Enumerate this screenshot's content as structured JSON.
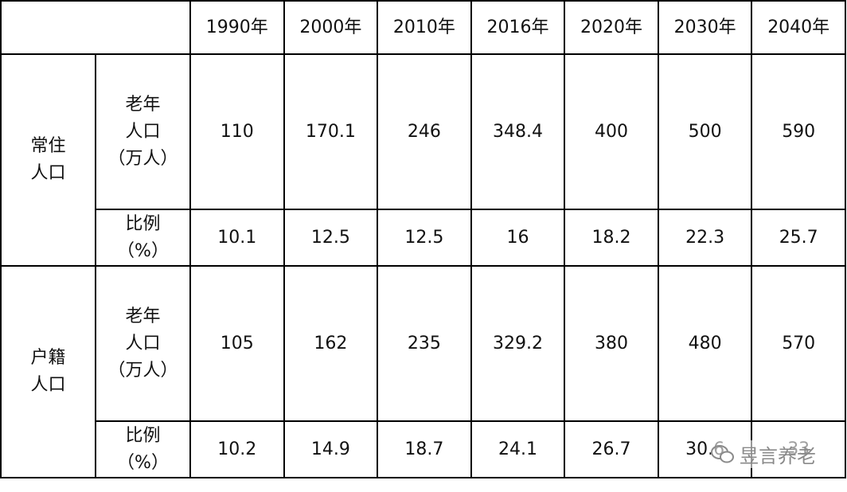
{
  "header": {
    "years": [
      "1990年",
      "2000年",
      "2010年",
      "2016年",
      "2020年",
      "2030年",
      "2040年"
    ]
  },
  "groups": [
    {
      "label": "常住\n人口",
      "rows": [
        {
          "label": "老年\n人口\n（万人）",
          "values": [
            "110",
            "170.1",
            "246",
            "348.4",
            "400",
            "500",
            "590"
          ]
        },
        {
          "label": "比例\n（%）",
          "values": [
            "10.1",
            "12.5",
            "12.5",
            "16",
            "18.2",
            "22.3",
            "25.7"
          ]
        }
      ]
    },
    {
      "label": "户籍\n人口",
      "rows": [
        {
          "label": "老年\n人口\n（万人）",
          "values": [
            "105",
            "162",
            "235",
            "329.2",
            "380",
            "480",
            "570"
          ]
        },
        {
          "label": "比例\n（%）",
          "values": [
            "10.2",
            "14.9",
            "18.7",
            "24.1",
            "26.7",
            "30.6",
            "33"
          ]
        }
      ]
    }
  ],
  "watermark": "昱言养老"
}
